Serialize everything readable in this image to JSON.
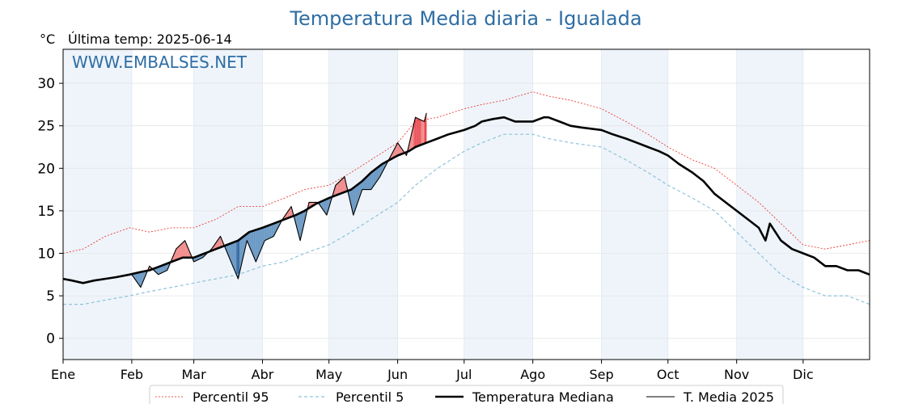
{
  "chart_data": {
    "type": "line",
    "title": "Temperatura Media diaria - Igualada",
    "unit_label": "°C",
    "subtitle": "Última temp: 2025-06-14",
    "watermark": "WWW.EMBALSES.NET",
    "ylim": [
      -2.5,
      34
    ],
    "yticks": [
      0,
      5,
      10,
      15,
      20,
      25,
      30
    ],
    "x_unit": "day of year",
    "xlim": [
      1,
      365
    ],
    "months": [
      {
        "label": "Ene",
        "start_day": 1
      },
      {
        "label": "Feb",
        "start_day": 32
      },
      {
        "label": "Mar",
        "start_day": 60
      },
      {
        "label": "Abr",
        "start_day": 91
      },
      {
        "label": "May",
        "start_day": 121
      },
      {
        "label": "Jun",
        "start_day": 152
      },
      {
        "label": "Jul",
        "start_day": 182
      },
      {
        "label": "Ago",
        "start_day": 213
      },
      {
        "label": "Sep",
        "start_day": 244
      },
      {
        "label": "Oct",
        "start_day": 274
      },
      {
        "label": "Nov",
        "start_day": 305
      },
      {
        "label": "Dic",
        "start_day": 335
      }
    ],
    "grid": true,
    "legend_position": "bottom",
    "colors": {
      "title": "#2e6da4",
      "watermark": "#2e6da4",
      "p95": "#e8261e",
      "p5": "#8ec3d9",
      "median": "#000000",
      "current": "#000000",
      "above_fill": "#f08080",
      "above_fill_strong": "#e8444a",
      "below_fill": "#5b8fbe",
      "below_fill_strong": "#1f5a98",
      "month_band": "#eef4fa"
    },
    "series": [
      {
        "name": "Percentil 95",
        "key": "p95",
        "x": [
          1,
          10,
          20,
          31,
          40,
          50,
          60,
          70,
          80,
          91,
          101,
          110,
          121,
          131,
          140,
          152,
          160,
          170,
          182,
          190,
          200,
          213,
          220,
          230,
          244,
          255,
          265,
          274,
          285,
          295,
          305,
          315,
          325,
          335,
          345,
          355,
          365
        ],
        "y": [
          10,
          10.5,
          12,
          13,
          12.5,
          13,
          13,
          14,
          15.5,
          15.5,
          16.5,
          17.5,
          18,
          19.5,
          21,
          23,
          25.5,
          26,
          27,
          27.5,
          28,
          29,
          28.5,
          28,
          27,
          25.5,
          24,
          22.5,
          21,
          20,
          18,
          16,
          13.5,
          11,
          10.5,
          11,
          11.5
        ]
      },
      {
        "name": "Percentil 5",
        "key": "p5",
        "x": [
          1,
          10,
          20,
          31,
          40,
          50,
          60,
          70,
          80,
          91,
          101,
          110,
          121,
          131,
          140,
          152,
          160,
          170,
          182,
          190,
          200,
          213,
          220,
          230,
          244,
          255,
          265,
          274,
          285,
          295,
          305,
          315,
          325,
          335,
          345,
          355,
          365
        ],
        "y": [
          4,
          4,
          4.5,
          5,
          5.5,
          6,
          6.5,
          7,
          7.5,
          8.5,
          9,
          10,
          11,
          12.5,
          14,
          16,
          18,
          20,
          22,
          23,
          24,
          24,
          23.5,
          23,
          22.5,
          21,
          19.5,
          18,
          16.5,
          15,
          12.5,
          10,
          7.5,
          6,
          5,
          5,
          4
        ]
      },
      {
        "name": "Temperatura Mediana",
        "key": "median",
        "x": [
          1,
          5,
          10,
          15,
          20,
          25,
          31,
          36,
          40,
          45,
          50,
          55,
          60,
          65,
          70,
          75,
          80,
          85,
          91,
          96,
          101,
          106,
          110,
          115,
          121,
          126,
          131,
          136,
          140,
          145,
          152,
          157,
          160,
          165,
          170,
          175,
          182,
          187,
          190,
          195,
          200,
          205,
          213,
          218,
          220,
          225,
          230,
          235,
          244,
          249,
          255,
          260,
          265,
          270,
          274,
          279,
          285,
          290,
          295,
          300,
          305,
          310,
          315,
          318,
          320,
          325,
          330,
          335,
          340,
          345,
          350,
          355,
          360,
          365
        ],
        "y": [
          7,
          6.8,
          6.5,
          6.8,
          7,
          7.2,
          7.5,
          7.8,
          8,
          8.5,
          9,
          9.5,
          9.5,
          10,
          10.5,
          11,
          11.5,
          12.5,
          13,
          13.5,
          14,
          14.5,
          15,
          15.8,
          16.5,
          17,
          17.5,
          18.5,
          19.5,
          20.5,
          21.5,
          22,
          22.5,
          23,
          23.5,
          24,
          24.5,
          25,
          25.5,
          25.8,
          26,
          25.5,
          25.5,
          26,
          26,
          25.5,
          25,
          24.8,
          24.5,
          24,
          23.5,
          23,
          22.5,
          22,
          21.5,
          20.5,
          19.5,
          18.5,
          17,
          16,
          15,
          14,
          13,
          11.5,
          13.5,
          11.5,
          10.5,
          10,
          9.5,
          8.5,
          8.5,
          8,
          8,
          7.5
        ]
      },
      {
        "name": "T. Media 2025",
        "key": "current",
        "x": [
          32,
          36,
          40,
          44,
          48,
          52,
          56,
          60,
          64,
          68,
          72,
          76,
          80,
          84,
          88,
          92,
          96,
          100,
          104,
          108,
          112,
          116,
          120,
          124,
          128,
          132,
          136,
          140,
          144,
          148,
          152,
          156,
          160,
          164,
          165
        ],
        "y": [
          7.5,
          6,
          8.5,
          7.5,
          8,
          10.5,
          11.5,
          9,
          9.5,
          10.5,
          12,
          9.5,
          7,
          11.5,
          9,
          11.5,
          12,
          14,
          15.5,
          11.5,
          16,
          16,
          14.5,
          18,
          19,
          14.5,
          17.5,
          17.5,
          19,
          21,
          23,
          21.5,
          26,
          25.5,
          26.5
        ]
      }
    ]
  }
}
